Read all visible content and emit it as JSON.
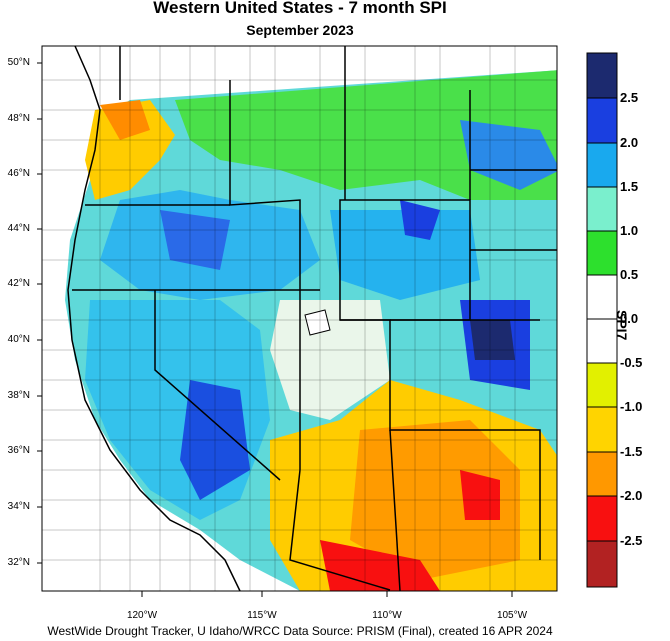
{
  "title": "Western United States - 7 month SPI",
  "subtitle": "September 2023",
  "footer": "WestWide Drought Tracker, U Idaho/WRCC Data Source: PRISM (Final), created 16 APR 2024",
  "colorbar": {
    "title": "SPI7",
    "labels": [
      "2.5",
      "2.0",
      "1.5",
      "1.0",
      "0.5",
      "0.0",
      "-0.5",
      "-1.0",
      "-1.5",
      "-2.0",
      "-2.5"
    ],
    "colors": [
      "#1c2a6f",
      "#1a3fe0",
      "#19a9ee",
      "#7aefcd",
      "#2de02d",
      "#ffffff",
      "#ffffff",
      "#e2f000",
      "#ffd400",
      "#ff9800",
      "#f81010",
      "#b22222"
    ]
  },
  "axes": {
    "lat_labels": [
      "50°N",
      "48°N",
      "46°N",
      "44°N",
      "42°N",
      "40°N",
      "38°N",
      "36°N",
      "34°N",
      "32°N"
    ],
    "lon_labels": [
      "120°W",
      "115°W",
      "110°W",
      "105°W"
    ]
  }
}
